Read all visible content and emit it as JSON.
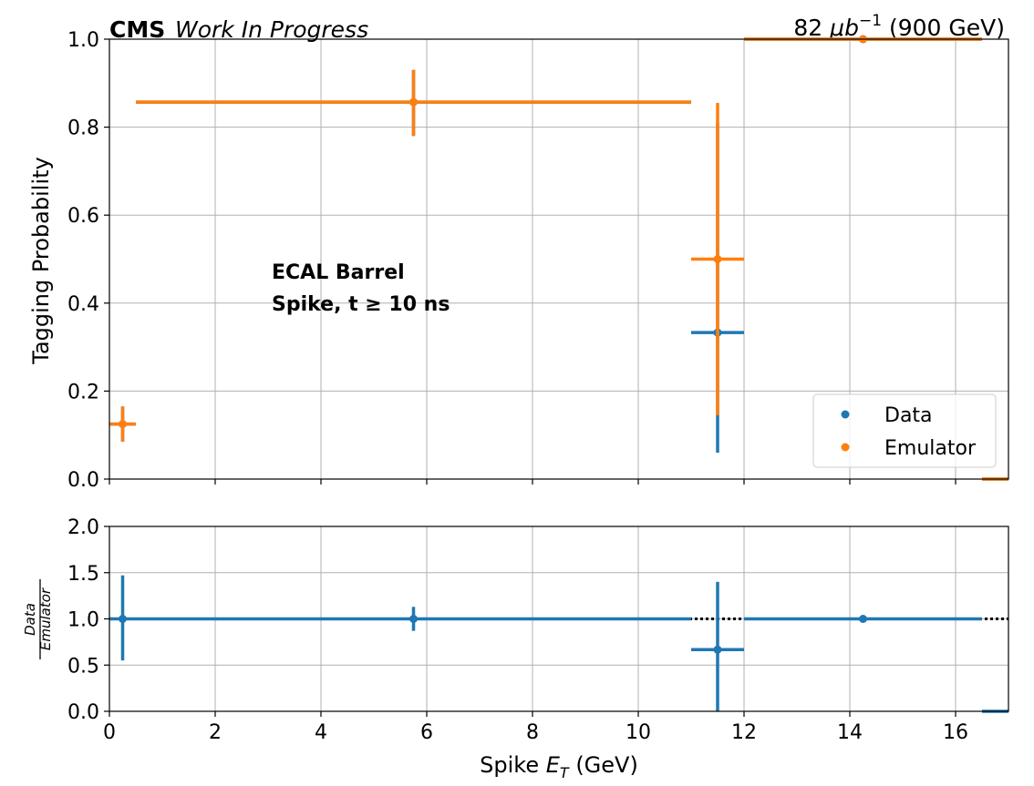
{
  "header": {
    "experiment": "CMS",
    "status": "Work In Progress",
    "lumi_prefix": "82 ",
    "lumi_unit": "μb",
    "lumi_exp": "−1",
    "lumi_suffix": " (900 GeV)"
  },
  "annotation": {
    "line1": "ECAL Barrel",
    "line2": "Spike, t ≥ 10 ns"
  },
  "legend": {
    "placement": "lower-right",
    "entries": [
      "Data",
      "Emulator"
    ]
  },
  "colors": {
    "data": "#1f77b4",
    "emulator": "#ff7f0e",
    "grid": "#b0b0b0",
    "reference_line": "#000000"
  },
  "chart_data": [
    {
      "type": "scatter",
      "role": "main",
      "xlim": [
        0,
        17
      ],
      "ylim": [
        0,
        1.0
      ],
      "ylabel": "Tagging Probability",
      "grid": true,
      "x_ticks": [
        0,
        2,
        4,
        6,
        8,
        10,
        12,
        14,
        16
      ],
      "y_ticks": [
        0.0,
        0.2,
        0.4,
        0.6,
        0.8,
        1.0
      ],
      "y_tick_labels": [
        "0.0",
        "0.2",
        "0.4",
        "0.6",
        "0.8",
        "1.0"
      ],
      "series": [
        {
          "name": "Data",
          "color_key": "data",
          "points": [
            {
              "x": 0.25,
              "y": 0.125,
              "xlo": 0.0,
              "xhi": 0.5,
              "ylo": 0.085,
              "yhi": 0.165
            },
            {
              "x": 5.75,
              "y": 0.857,
              "xlo": 0.5,
              "xhi": 11.0,
              "ylo": 0.78,
              "yhi": 0.93
            },
            {
              "x": 11.5,
              "y": 0.333,
              "xlo": 11.0,
              "xhi": 12.0,
              "ylo": 0.06,
              "yhi": 0.81
            },
            {
              "x": 14.25,
              "y": 1.0,
              "xlo": 12.0,
              "xhi": 16.5,
              "ylo": 1.0,
              "yhi": 1.0
            },
            {
              "x": 16.75,
              "y": 0.0,
              "xlo": 16.5,
              "xhi": 17.0,
              "ylo": 0.0,
              "yhi": 0.0
            }
          ]
        },
        {
          "name": "Emulator",
          "color_key": "emulator",
          "points": [
            {
              "x": 0.25,
              "y": 0.125,
              "xlo": 0.0,
              "xhi": 0.5,
              "ylo": 0.085,
              "yhi": 0.165
            },
            {
              "x": 5.75,
              "y": 0.857,
              "xlo": 0.5,
              "xhi": 11.0,
              "ylo": 0.78,
              "yhi": 0.93
            },
            {
              "x": 11.5,
              "y": 0.5,
              "xlo": 11.0,
              "xhi": 12.0,
              "ylo": 0.145,
              "yhi": 0.855
            },
            {
              "x": 14.25,
              "y": 1.0,
              "xlo": 12.0,
              "xhi": 16.5,
              "ylo": 1.0,
              "yhi": 1.0
            },
            {
              "x": 16.75,
              "y": 0.0,
              "xlo": 16.5,
              "xhi": 17.0,
              "ylo": 0.0,
              "yhi": 0.0
            }
          ]
        }
      ]
    },
    {
      "type": "scatter",
      "role": "ratio",
      "xlim": [
        0,
        17
      ],
      "ylim": [
        0,
        2.0
      ],
      "ylabel_numerator": "Data",
      "ylabel_denominator": "Emulator",
      "xlabel_prefix": "Spike ",
      "xlabel_symbol": "E",
      "xlabel_subscript": "T",
      "xlabel_suffix": " (GeV)",
      "grid": true,
      "reference_line": 1.0,
      "x_ticks": [
        0,
        2,
        4,
        6,
        8,
        10,
        12,
        14,
        16
      ],
      "y_ticks": [
        0.0,
        0.5,
        1.0,
        1.5,
        2.0
      ],
      "y_tick_labels": [
        "0.0",
        "0.5",
        "1.0",
        "1.5",
        "2.0"
      ],
      "series": [
        {
          "name": "Data",
          "color_key": "data",
          "points": [
            {
              "x": 0.25,
              "y": 1.0,
              "xlo": 0.0,
              "xhi": 0.5,
              "ylo": 0.55,
              "yhi": 1.47
            },
            {
              "x": 5.75,
              "y": 1.0,
              "xlo": 0.5,
              "xhi": 11.0,
              "ylo": 0.87,
              "yhi": 1.13
            },
            {
              "x": 11.5,
              "y": 0.667,
              "xlo": 11.0,
              "xhi": 12.0,
              "ylo": 0.0,
              "yhi": 1.4
            },
            {
              "x": 14.25,
              "y": 1.0,
              "xlo": 12.0,
              "xhi": 16.5,
              "ylo": 1.0,
              "yhi": 1.0
            },
            {
              "x": 16.75,
              "y": 0.0,
              "xlo": 16.5,
              "xhi": 17.0,
              "ylo": 0.0,
              "yhi": 0.0
            }
          ]
        }
      ]
    }
  ]
}
